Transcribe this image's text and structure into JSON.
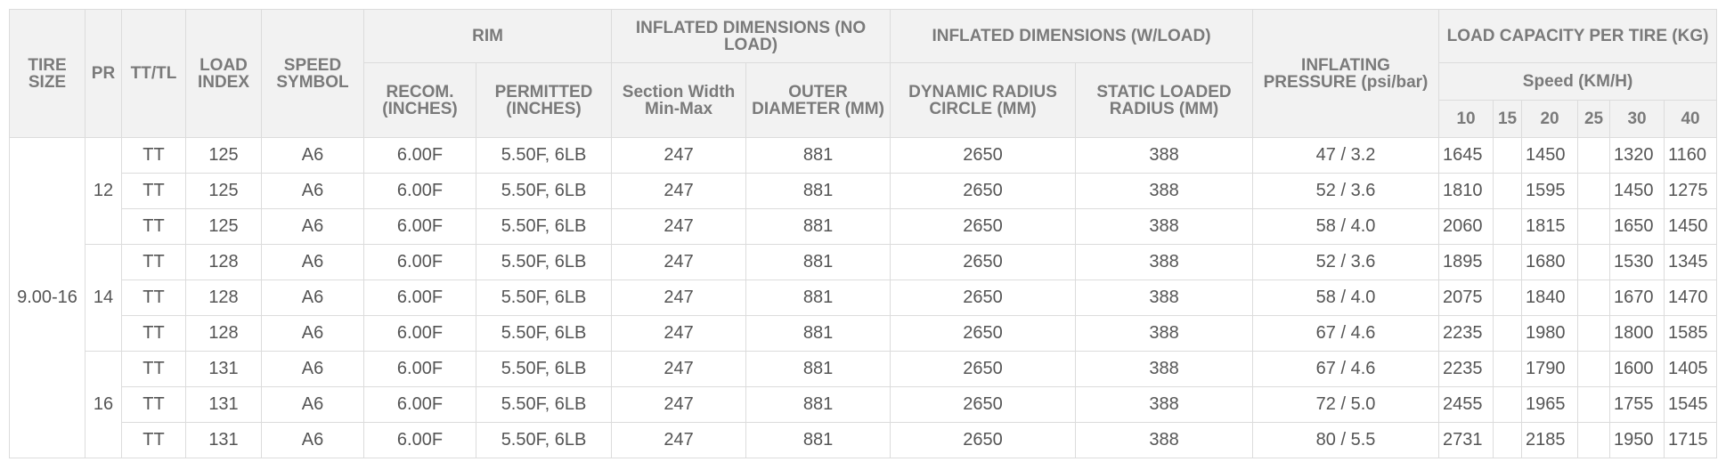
{
  "headers": {
    "tire_size": "TIRE SIZE",
    "pr": "PR",
    "tt_tl": "TT/TL",
    "load_index": "LOAD INDEX",
    "speed_symbol": "SPEED SYMBOL",
    "rim": "RIM",
    "recom": "RECOM. (INCHES)",
    "permitted": "PERMITTED (INCHES)",
    "no_load": "INFLATED DIMENSIONS (NO LOAD)",
    "section_width": "Section Width Min-Max",
    "outer_diameter": "OUTER DIAMETER (MM)",
    "w_load": "INFLATED DIMENSIONS (W/LOAD)",
    "dynamic_radius": "DYNAMIC RADIUS CIRCLE (MM)",
    "static_radius": "STATIC LOADED RADIUS (MM)",
    "pressure": "INFLATING PRESSURE (psi/bar)",
    "load_capacity": "LOAD CAPACITY PER TIRE (KG)",
    "speed": "Speed (KM/H)",
    "speeds": [
      "10",
      "15",
      "20",
      "25",
      "30",
      "40"
    ]
  },
  "table": {
    "tire_size": "9.00-16",
    "groups": [
      {
        "pr": 12,
        "rows": [
          {
            "tt_tl": "TT",
            "load_index": 125,
            "speed_symbol": "A6",
            "recom": "6.00F",
            "permitted": "5.50F, 6LB",
            "section_width": 247,
            "outer_diameter": 881,
            "dynamic_radius": 2650,
            "static_radius": 388,
            "pressure": "47 / 3.2",
            "load": {
              "10": 1645,
              "20": 1450,
              "30": 1320,
              "40": 1160
            }
          },
          {
            "tt_tl": "TT",
            "load_index": 125,
            "speed_symbol": "A6",
            "recom": "6.00F",
            "permitted": "5.50F, 6LB",
            "section_width": 247,
            "outer_diameter": 881,
            "dynamic_radius": 2650,
            "static_radius": 388,
            "pressure": "52 / 3.6",
            "load": {
              "10": 1810,
              "20": 1595,
              "30": 1450,
              "40": 1275
            }
          },
          {
            "tt_tl": "TT",
            "load_index": 125,
            "speed_symbol": "A6",
            "recom": "6.00F",
            "permitted": "5.50F, 6LB",
            "section_width": 247,
            "outer_diameter": 881,
            "dynamic_radius": 2650,
            "static_radius": 388,
            "pressure": "58 / 4.0",
            "load": {
              "10": 2060,
              "20": 1815,
              "30": 1650,
              "40": 1450
            }
          }
        ]
      },
      {
        "pr": 14,
        "rows": [
          {
            "tt_tl": "TT",
            "load_index": 128,
            "speed_symbol": "A6",
            "recom": "6.00F",
            "permitted": "5.50F, 6LB",
            "section_width": 247,
            "outer_diameter": 881,
            "dynamic_radius": 2650,
            "static_radius": 388,
            "pressure": "52 / 3.6",
            "load": {
              "10": 1895,
              "20": 1680,
              "30": 1530,
              "40": 1345
            }
          },
          {
            "tt_tl": "TT",
            "load_index": 128,
            "speed_symbol": "A6",
            "recom": "6.00F",
            "permitted": "5.50F, 6LB",
            "section_width": 247,
            "outer_diameter": 881,
            "dynamic_radius": 2650,
            "static_radius": 388,
            "pressure": "58 / 4.0",
            "load": {
              "10": 2075,
              "20": 1840,
              "30": 1670,
              "40": 1470
            }
          },
          {
            "tt_tl": "TT",
            "load_index": 128,
            "speed_symbol": "A6",
            "recom": "6.00F",
            "permitted": "5.50F, 6LB",
            "section_width": 247,
            "outer_diameter": 881,
            "dynamic_radius": 2650,
            "static_radius": 388,
            "pressure": "67 / 4.6",
            "load": {
              "10": 2235,
              "20": 1980,
              "30": 1800,
              "40": 1585
            }
          }
        ]
      },
      {
        "pr": 16,
        "rows": [
          {
            "tt_tl": "TT",
            "load_index": 131,
            "speed_symbol": "A6",
            "recom": "6.00F",
            "permitted": "5.50F, 6LB",
            "section_width": 247,
            "outer_diameter": 881,
            "dynamic_radius": 2650,
            "static_radius": 388,
            "pressure": "67 / 4.6",
            "load": {
              "10": 2235,
              "20": 1790,
              "30": 1600,
              "40": 1405
            }
          },
          {
            "tt_tl": "TT",
            "load_index": 131,
            "speed_symbol": "A6",
            "recom": "6.00F",
            "permitted": "5.50F, 6LB",
            "section_width": 247,
            "outer_diameter": 881,
            "dynamic_radius": 2650,
            "static_radius": 388,
            "pressure": "72 / 5.0",
            "load": {
              "10": 2455,
              "20": 1965,
              "30": 1755,
              "40": 1545
            }
          },
          {
            "tt_tl": "TT",
            "load_index": 131,
            "speed_symbol": "A6",
            "recom": "6.00F",
            "permitted": "5.50F, 6LB",
            "section_width": 247,
            "outer_diameter": 881,
            "dynamic_radius": 2650,
            "static_radius": 388,
            "pressure": "80 / 5.5",
            "load": {
              "10": 2731,
              "20": 2185,
              "30": 1950,
              "40": 1715
            }
          }
        ]
      }
    ]
  }
}
